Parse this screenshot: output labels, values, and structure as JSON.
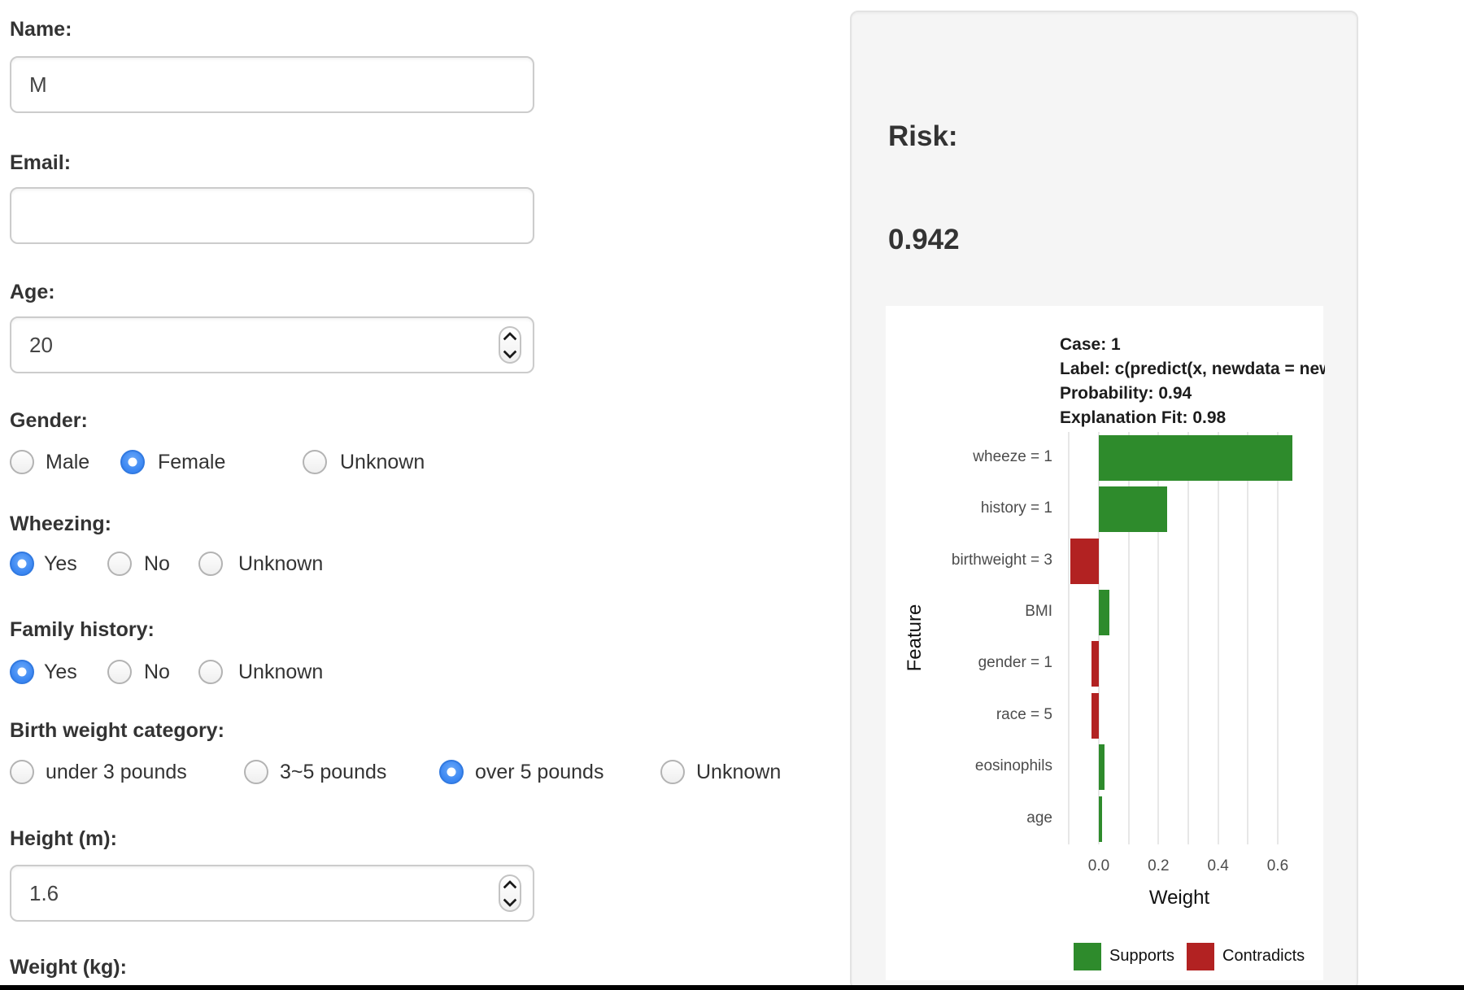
{
  "form": {
    "fields": [
      {
        "type": "text",
        "label": "Name:",
        "value": "M"
      },
      {
        "type": "text",
        "label": "Email:",
        "value": ""
      },
      {
        "type": "number",
        "label": "Age:",
        "value": "20"
      },
      {
        "type": "radio",
        "label": "Gender:",
        "options": [
          "Male",
          "Female",
          "Unknown"
        ],
        "selected": 1
      },
      {
        "type": "radio",
        "label": "Wheezing:",
        "options": [
          "Yes",
          "No",
          "Unknown"
        ],
        "selected": 0
      },
      {
        "type": "radio",
        "label": "Family history:",
        "options": [
          "Yes",
          "No",
          "Unknown"
        ],
        "selected": 0
      },
      {
        "type": "radio",
        "label": "Birth weight category:",
        "options": [
          "under 3 pounds",
          "3~5 pounds",
          "over 5 pounds",
          "Unknown"
        ],
        "selected": 2
      },
      {
        "type": "number",
        "label": "Height (m):",
        "value": "1.6"
      },
      {
        "type": "label-only",
        "label": "Weight (kg):",
        "value": ""
      }
    ]
  },
  "risk": {
    "heading": "Risk:",
    "value": "0.942"
  },
  "chart_data": {
    "type": "bar",
    "orientation": "horizontal",
    "header_lines": [
      "Case: 1",
      "Label: c(predict(x, newdata = new",
      "Probability: 0.94",
      "Explanation Fit: 0.98"
    ],
    "categories": [
      "wheeze = 1",
      "history = 1",
      "birthweight = 3",
      "BMI",
      "gender = 1",
      "race = 5",
      "eosinophils",
      "age"
    ],
    "values": [
      0.65,
      0.23,
      -0.095,
      0.035,
      -0.025,
      -0.025,
      0.02,
      0.01
    ],
    "title": "",
    "xlabel": "Weight",
    "ylabel": "Feature",
    "xlim": [
      -0.13,
      0.69
    ],
    "x_tick_values": [
      0.0,
      0.2,
      0.4,
      0.6
    ],
    "x_tick_labels": [
      "0.0",
      "0.2",
      "0.4",
      "0.6"
    ],
    "gridline_values": [
      -0.1,
      0.0,
      0.1,
      0.2,
      0.3,
      0.4,
      0.5,
      0.6
    ],
    "grid": "on",
    "legend_position": "bottom",
    "legend": [
      {
        "label": "Supports",
        "color": "#2E8B2C"
      },
      {
        "label": "Contradicts",
        "color": "#B22222"
      }
    ],
    "colors": {
      "supports": "#2E8B2C",
      "contradicts": "#B22222"
    }
  }
}
